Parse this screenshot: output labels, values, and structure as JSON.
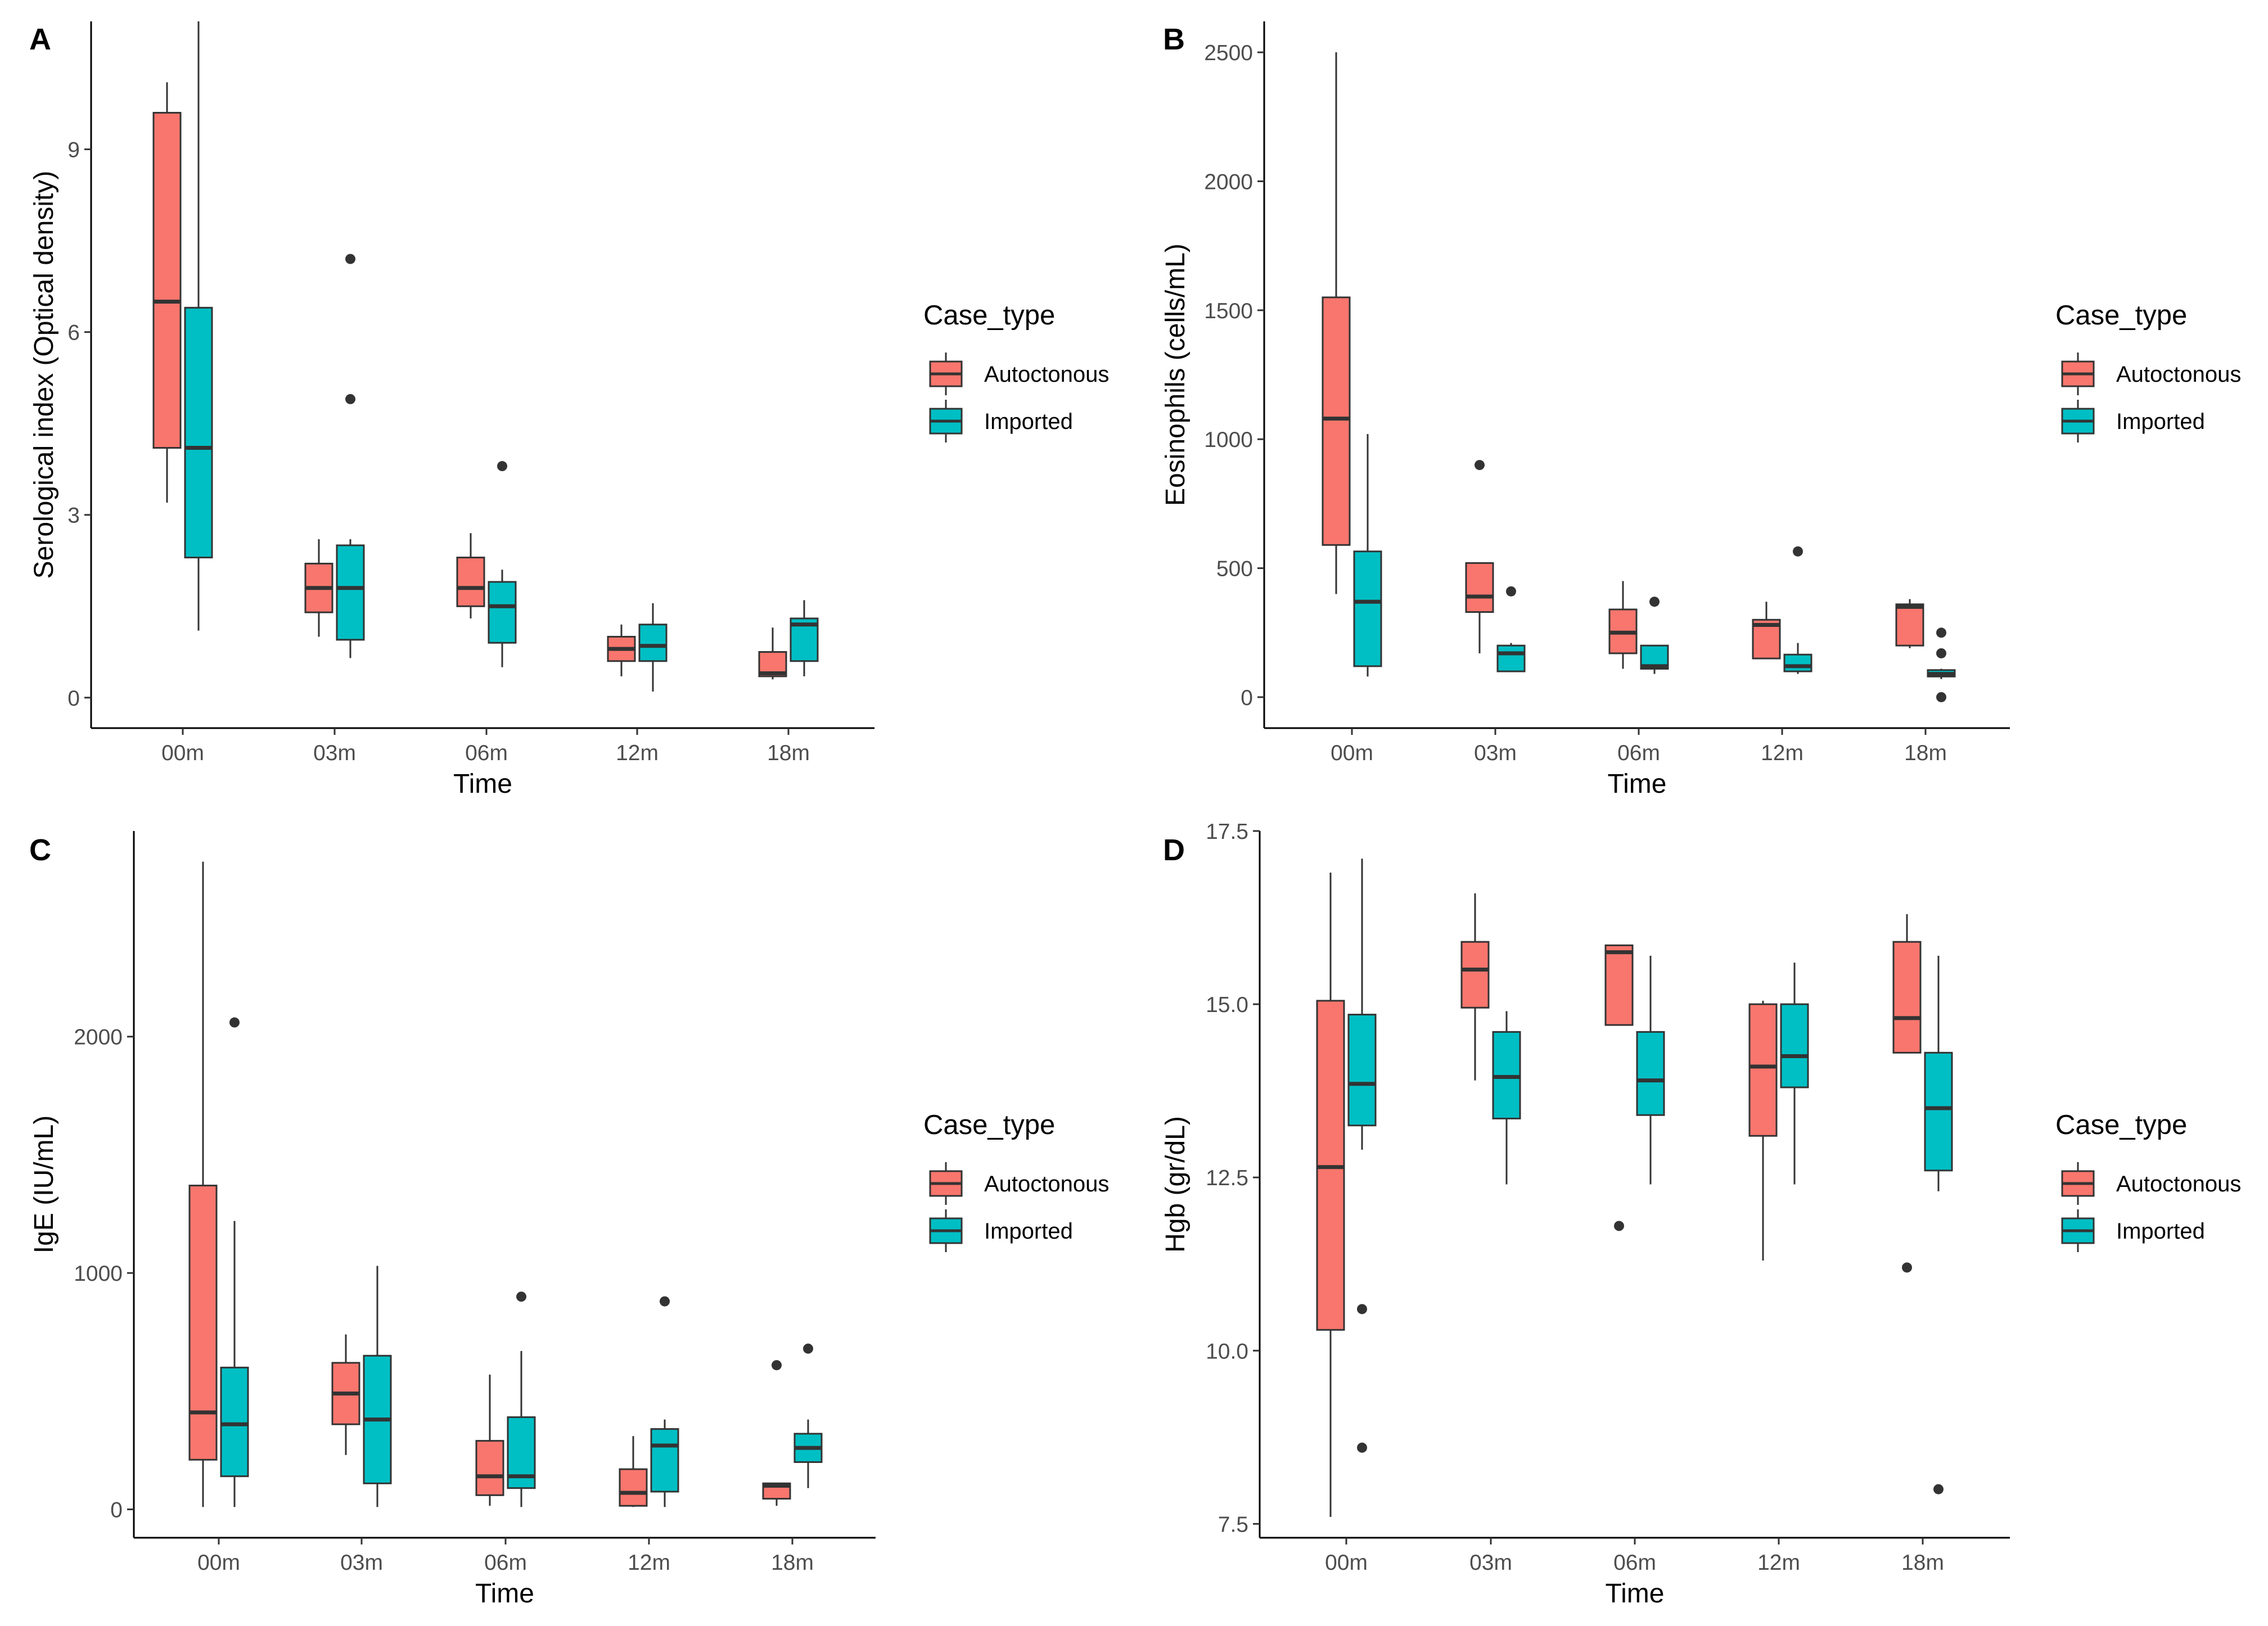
{
  "colors": {
    "autoctonous": "#F8766D",
    "imported": "#00BFC4",
    "stroke": "#333333"
  },
  "chart_data": [
    {
      "panel": "A",
      "type": "box",
      "xlabel": "Time",
      "ylabel": "Serological index (Optical density)",
      "categories": [
        "00m",
        "03m",
        "06m",
        "12m",
        "18m"
      ],
      "ylim": [
        -0.5,
        11.1
      ],
      "yticks": [
        0,
        3,
        6,
        9
      ],
      "ytick_labels": [
        "0",
        "3",
        "6",
        "9"
      ],
      "legend": {
        "title": "Case_type",
        "entries": [
          "Autoctonous",
          "Imported"
        ]
      },
      "series": [
        {
          "name": "Autoctonous",
          "boxes": [
            {
              "min": 3.2,
              "q1": 4.1,
              "median": 6.5,
              "q3": 9.6,
              "max": 10.1,
              "outliers": []
            },
            {
              "min": 1.0,
              "q1": 1.4,
              "median": 1.8,
              "q3": 2.2,
              "max": 2.6,
              "outliers": []
            },
            {
              "min": 1.3,
              "q1": 1.5,
              "median": 1.8,
              "q3": 2.3,
              "max": 2.7,
              "outliers": []
            },
            {
              "min": 0.35,
              "q1": 0.6,
              "median": 0.8,
              "q3": 1.0,
              "max": 1.2,
              "outliers": []
            },
            {
              "min": 0.3,
              "q1": 0.35,
              "median": 0.4,
              "q3": 0.75,
              "max": 1.15,
              "outliers": []
            }
          ]
        },
        {
          "name": "Imported",
          "boxes": [
            {
              "min": 1.1,
              "q1": 2.3,
              "median": 4.1,
              "q3": 6.4,
              "max": 11.1,
              "outliers": []
            },
            {
              "min": 0.65,
              "q1": 0.95,
              "median": 1.8,
              "q3": 2.5,
              "max": 2.6,
              "outliers": [
                4.9,
                7.2
              ]
            },
            {
              "min": 0.5,
              "q1": 0.9,
              "median": 1.5,
              "q3": 1.9,
              "max": 2.1,
              "outliers": [
                3.8
              ]
            },
            {
              "min": 0.1,
              "q1": 0.6,
              "median": 0.85,
              "q3": 1.2,
              "max": 1.55,
              "outliers": []
            },
            {
              "min": 0.35,
              "q1": 0.6,
              "median": 1.2,
              "q3": 1.3,
              "max": 1.6,
              "outliers": []
            }
          ]
        }
      ]
    },
    {
      "panel": "B",
      "type": "box",
      "xlabel": "Time",
      "ylabel": "Eosinophils (cells/mL)",
      "categories": [
        "00m",
        "03m",
        "06m",
        "12m",
        "18m"
      ],
      "ylim": [
        -120,
        2620
      ],
      "yticks": [
        0,
        500,
        1000,
        1500,
        2000,
        2500
      ],
      "ytick_labels": [
        "0",
        "500",
        "1000",
        "1500",
        "2000",
        "2500"
      ],
      "legend": {
        "title": "Case_type",
        "entries": [
          "Autoctonous",
          "Imported"
        ]
      },
      "series": [
        {
          "name": "Autoctonous",
          "boxes": [
            {
              "min": 400,
              "q1": 590,
              "median": 1080,
              "q3": 1550,
              "max": 2500,
              "outliers": []
            },
            {
              "min": 170,
              "q1": 330,
              "median": 390,
              "q3": 520,
              "max": 520,
              "outliers": [
                900
              ]
            },
            {
              "min": 110,
              "q1": 170,
              "median": 250,
              "q3": 340,
              "max": 450,
              "outliers": []
            },
            {
              "min": 150,
              "q1": 150,
              "median": 280,
              "q3": 300,
              "max": 370,
              "outliers": []
            },
            {
              "min": 190,
              "q1": 200,
              "median": 350,
              "q3": 360,
              "max": 380,
              "outliers": []
            }
          ]
        },
        {
          "name": "Imported",
          "boxes": [
            {
              "min": 80,
              "q1": 120,
              "median": 370,
              "q3": 565,
              "max": 1020,
              "outliers": []
            },
            {
              "min": 100,
              "q1": 100,
              "median": 170,
              "q3": 200,
              "max": 210,
              "outliers": [
                410
              ]
            },
            {
              "min": 90,
              "q1": 110,
              "median": 120,
              "q3": 200,
              "max": 200,
              "outliers": [
                370
              ]
            },
            {
              "min": 90,
              "q1": 100,
              "median": 120,
              "q3": 165,
              "max": 210,
              "outliers": [
                565
              ]
            },
            {
              "min": 70,
              "q1": 80,
              "median": 90,
              "q3": 105,
              "max": 110,
              "outliers": [
                0,
                170,
                250
              ]
            }
          ]
        }
      ]
    },
    {
      "panel": "C",
      "type": "box",
      "xlabel": "Time",
      "ylabel": "IgE (IU/mL)",
      "categories": [
        "00m",
        "03m",
        "06m",
        "12m",
        "18m"
      ],
      "ylim": [
        -120,
        2870
      ],
      "yticks": [
        0,
        1000,
        2000
      ],
      "ytick_labels": [
        "0",
        "1000",
        "2000"
      ],
      "legend": {
        "title": "Case_type",
        "entries": [
          "Autoctonous",
          "Imported"
        ]
      },
      "series": [
        {
          "name": "Autoctonous",
          "boxes": [
            {
              "min": 10,
              "q1": 210,
              "median": 410,
              "q3": 1370,
              "max": 2740,
              "outliers": []
            },
            {
              "min": 230,
              "q1": 360,
              "median": 490,
              "q3": 620,
              "max": 740,
              "outliers": []
            },
            {
              "min": 15,
              "q1": 60,
              "median": 140,
              "q3": 290,
              "max": 570,
              "outliers": []
            },
            {
              "min": 10,
              "q1": 15,
              "median": 70,
              "q3": 170,
              "max": 310,
              "outliers": []
            },
            {
              "min": 15,
              "q1": 45,
              "median": 100,
              "q3": 110,
              "max": 110,
              "outliers": [
                610
              ]
            }
          ]
        },
        {
          "name": "Imported",
          "boxes": [
            {
              "min": 10,
              "q1": 140,
              "median": 360,
              "q3": 600,
              "max": 1220,
              "outliers": [
                2060
              ]
            },
            {
              "min": 10,
              "q1": 110,
              "median": 380,
              "q3": 650,
              "max": 1030,
              "outliers": []
            },
            {
              "min": 10,
              "q1": 90,
              "median": 140,
              "q3": 390,
              "max": 670,
              "outliers": [
                900
              ]
            },
            {
              "min": 10,
              "q1": 75,
              "median": 270,
              "q3": 340,
              "max": 380,
              "outliers": [
                880
              ]
            },
            {
              "min": 90,
              "q1": 200,
              "median": 260,
              "q3": 320,
              "max": 380,
              "outliers": [
                680
              ]
            }
          ]
        }
      ]
    },
    {
      "panel": "D",
      "type": "box",
      "xlabel": "Time",
      "ylabel": "Hgb (gr/dL)",
      "categories": [
        "00m",
        "03m",
        "06m",
        "12m",
        "18m"
      ],
      "ylim": [
        7.3,
        17.5
      ],
      "yticks": [
        7.5,
        10.0,
        12.5,
        15.0,
        17.5
      ],
      "ytick_labels": [
        "7.5",
        "10.0",
        "12.5",
        "15.0",
        "17.5"
      ],
      "legend": {
        "title": "Case_type",
        "entries": [
          "Autoctonous",
          "Imported"
        ]
      },
      "series": [
        {
          "name": "Autoctonous",
          "boxes": [
            {
              "min": 7.6,
              "q1": 10.3,
              "median": 12.65,
              "q3": 15.05,
              "max": 16.9,
              "outliers": []
            },
            {
              "min": 13.9,
              "q1": 14.95,
              "median": 15.5,
              "q3": 15.9,
              "max": 16.6,
              "outliers": []
            },
            {
              "min": 14.7,
              "q1": 14.7,
              "median": 15.75,
              "q3": 15.85,
              "max": 15.85,
              "outliers": [
                11.8
              ]
            },
            {
              "min": 11.3,
              "q1": 13.1,
              "median": 14.1,
              "q3": 15.0,
              "max": 15.05,
              "outliers": []
            },
            {
              "min": 14.3,
              "q1": 14.3,
              "median": 14.8,
              "q3": 15.9,
              "max": 16.3,
              "outliers": [
                11.2
              ]
            }
          ]
        },
        {
          "name": "Imported",
          "boxes": [
            {
              "min": 12.9,
              "q1": 13.25,
              "median": 13.85,
              "q3": 14.85,
              "max": 17.1,
              "outliers": [
                10.6,
                8.6
              ]
            },
            {
              "min": 12.4,
              "q1": 13.35,
              "median": 13.95,
              "q3": 14.6,
              "max": 14.9,
              "outliers": []
            },
            {
              "min": 12.4,
              "q1": 13.4,
              "median": 13.9,
              "q3": 14.6,
              "max": 15.7,
              "outliers": []
            },
            {
              "min": 12.4,
              "q1": 13.8,
              "median": 14.25,
              "q3": 15.0,
              "max": 15.6,
              "outliers": []
            },
            {
              "min": 12.3,
              "q1": 12.6,
              "median": 13.5,
              "q3": 14.3,
              "max": 15.7,
              "outliers": [
                8.0
              ]
            }
          ]
        }
      ]
    }
  ]
}
